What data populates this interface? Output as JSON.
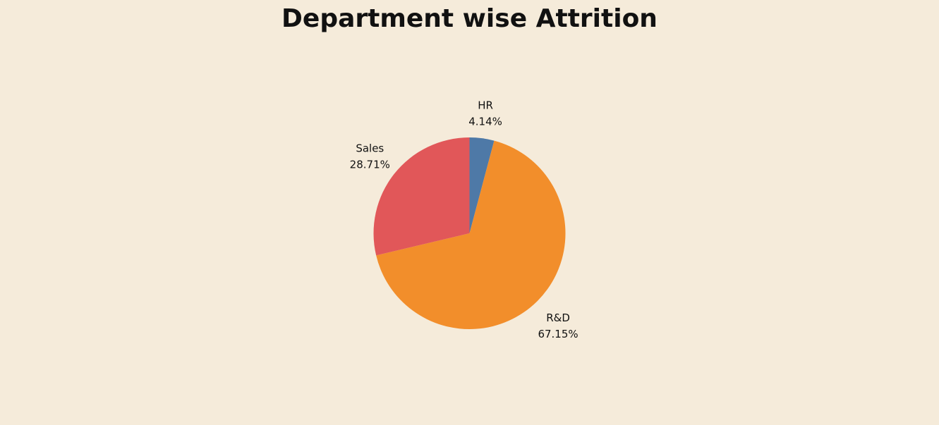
{
  "chart_data": {
    "type": "pie",
    "title": "Department wise Attrition",
    "categories": [
      "HR",
      "R&D",
      "Sales"
    ],
    "values": [
      4.14,
      67.15,
      28.71
    ],
    "value_labels": [
      "4.14%",
      "67.15%",
      "28.71%"
    ],
    "colors": [
      "#4e79a7",
      "#f28e2b",
      "#e15759"
    ],
    "start": "12 o'clock",
    "direction": "clockwise",
    "legend": "none"
  },
  "colors": {
    "background": "#f5ebda",
    "text": "#111111"
  }
}
